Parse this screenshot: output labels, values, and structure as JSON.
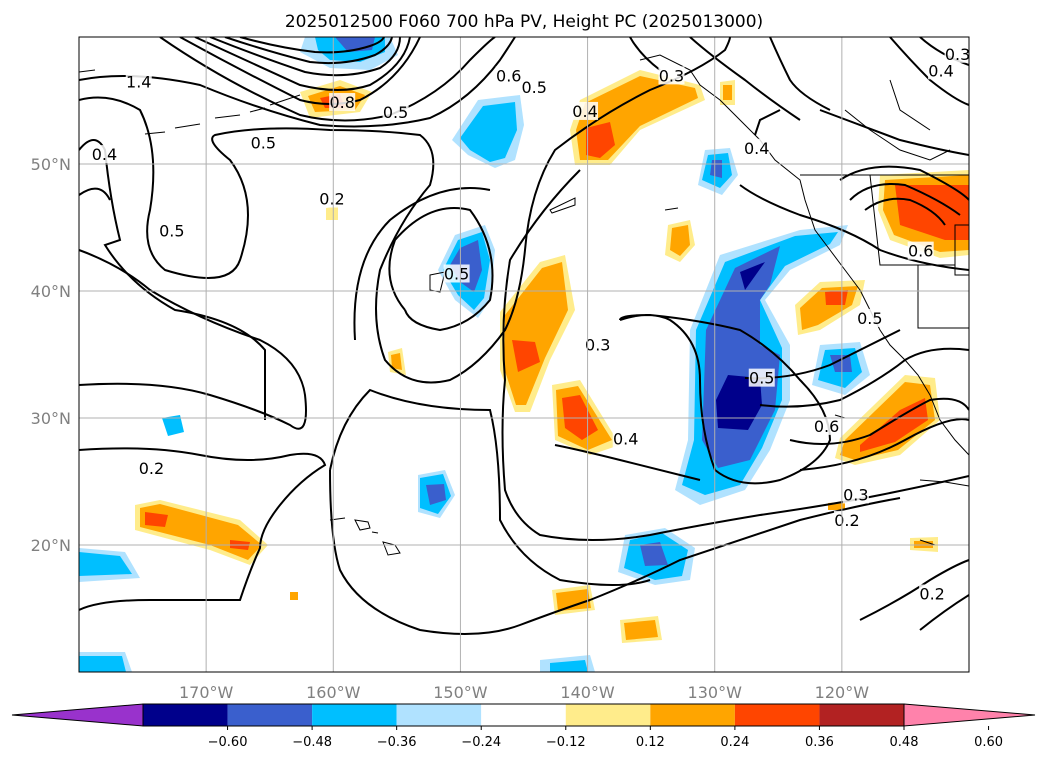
{
  "chart_data": {
    "type": "contour-map",
    "title": "2025012500 F060 700 hPa PV, Height PC (2025013000)",
    "x_range": [
      -180,
      -110
    ],
    "y_range": [
      10,
      60
    ],
    "grid": true,
    "x_ticks": [
      {
        "value": -170,
        "label": "170°W"
      },
      {
        "value": -160,
        "label": "160°W"
      },
      {
        "value": -150,
        "label": "150°W"
      },
      {
        "value": -140,
        "label": "140°W"
      },
      {
        "value": -130,
        "label": "130°W"
      },
      {
        "value": -120,
        "label": "120°W"
      }
    ],
    "y_ticks": [
      {
        "value": 20,
        "label": "20°N"
      },
      {
        "value": 30,
        "label": "30°N"
      },
      {
        "value": 40,
        "label": "40°N"
      },
      {
        "value": 50,
        "label": "50°N"
      }
    ],
    "colorbar": {
      "colors": [
        "#9932cc",
        "#00008b",
        "#3a5fcd",
        "#00bfff",
        "#b0e2ff",
        "#ffffff",
        "#ffec8b",
        "#ffa500",
        "#ff4500",
        "#b22222",
        "#ff82ab"
      ],
      "ticks": [
        "-0.60",
        "-0.48",
        "-0.36",
        "-0.24",
        "-0.12",
        "0.12",
        "0.24",
        "0.36",
        "0.48",
        "0.60"
      ]
    },
    "contour_labels": [
      {
        "text": "1.4",
        "lon": -175.3,
        "lat": 56.4
      },
      {
        "text": "0.8",
        "lon": -159.3,
        "lat": 54.8
      },
      {
        "text": "0.5",
        "lon": -155.1,
        "lat": 54.0
      },
      {
        "text": "0.6",
        "lon": -146.2,
        "lat": 56.9
      },
      {
        "text": "0.5",
        "lon": -165.5,
        "lat": 51.6
      },
      {
        "text": "0.5",
        "lon": -172.7,
        "lat": 44.7
      },
      {
        "text": "0.4",
        "lon": -178.0,
        "lat": 50.7
      },
      {
        "text": "0.2",
        "lon": -160.1,
        "lat": 47.2
      },
      {
        "text": "0.5",
        "lon": -150.3,
        "lat": 41.3
      },
      {
        "text": "0.5",
        "lon": -144.2,
        "lat": 56.0
      },
      {
        "text": "0.4",
        "lon": -140.2,
        "lat": 54.1
      },
      {
        "text": "0.3",
        "lon": -133.4,
        "lat": 56.9
      },
      {
        "text": "0.4",
        "lon": -126.7,
        "lat": 51.2
      },
      {
        "text": "0.3",
        "lon": -110.9,
        "lat": 58.6
      },
      {
        "text": "0.4",
        "lon": -112.2,
        "lat": 57.3
      },
      {
        "text": "0.6",
        "lon": -113.8,
        "lat": 43.1
      },
      {
        "text": "0.5",
        "lon": -117.8,
        "lat": 37.8
      },
      {
        "text": "0.3",
        "lon": -139.2,
        "lat": 35.7
      },
      {
        "text": "0.4",
        "lon": -137.0,
        "lat": 28.3
      },
      {
        "text": "0.5",
        "lon": -126.3,
        "lat": 33.1
      },
      {
        "text": "0.6",
        "lon": -121.2,
        "lat": 29.3
      },
      {
        "text": "0.3",
        "lon": -118.9,
        "lat": 23.9
      },
      {
        "text": "0.2",
        "lon": -119.6,
        "lat": 21.9
      },
      {
        "text": "0.2",
        "lon": -112.9,
        "lat": 16.1
      },
      {
        "text": "0.2",
        "lon": -174.3,
        "lat": 26.0
      }
    ]
  }
}
